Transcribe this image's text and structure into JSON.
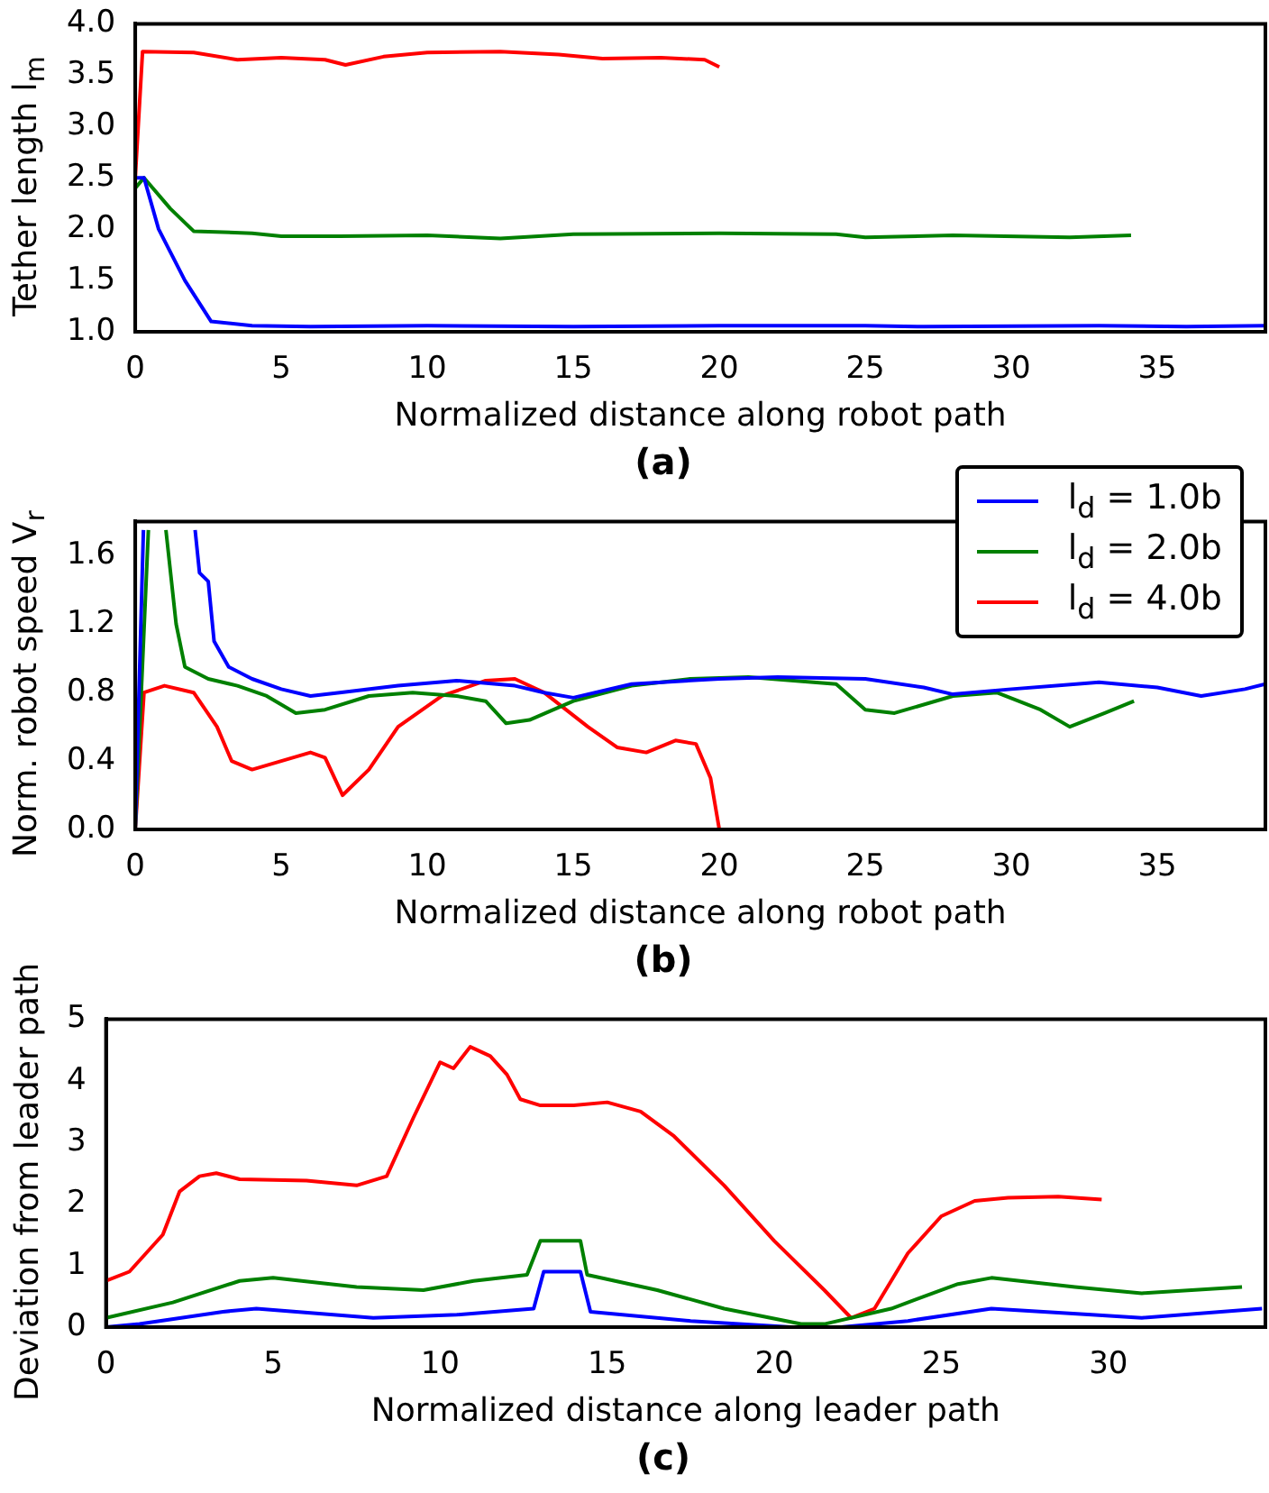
{
  "chart_data": [
    {
      "type": "line",
      "title": "(a)",
      "xlabel": "Normalized distance along robot path",
      "ylabel": "Tether length l$_{m}$",
      "xlim": [
        0,
        38.7
      ],
      "xticks": [
        0,
        5,
        10,
        15,
        20,
        25,
        30,
        35
      ],
      "ylim": [
        1,
        4
      ],
      "yticks": [
        {
          "value": 1,
          "label": "1.0"
        },
        1.5,
        {
          "value": 2,
          "label": "2.0"
        },
        2.5,
        {
          "value": 3,
          "label": "3.0"
        },
        3.5,
        {
          "value": 4,
          "label": "4.0"
        }
      ],
      "grid": false,
      "legend": false,
      "series": [
        {
          "color": "#0000ff",
          "x": [
            0,
            0.3,
            0.8,
            1.7,
            2.6,
            4,
            6,
            10,
            15,
            20,
            25,
            27,
            33,
            36,
            38.7
          ],
          "values": [
            2.5,
            2.5,
            2.0,
            1.5,
            1.1,
            1.06,
            1.05,
            1.06,
            1.05,
            1.06,
            1.06,
            1.05,
            1.06,
            1.05,
            1.06
          ]
        },
        {
          "color": "#008000",
          "x": [
            0,
            0.3,
            1.2,
            2,
            4,
            5,
            7,
            10,
            12.5,
            15,
            20,
            24,
            25,
            28,
            32,
            34.1
          ],
          "values": [
            2.4,
            2.5,
            2.2,
            1.98,
            1.96,
            1.93,
            1.93,
            1.94,
            1.91,
            1.95,
            1.96,
            1.95,
            1.92,
            1.94,
            1.92,
            1.94
          ]
        },
        {
          "color": "#ff0000",
          "x": [
            0,
            0.25,
            2,
            3.5,
            5,
            6.5,
            7.2,
            8.5,
            10,
            12.5,
            14.5,
            16,
            18,
            19.5,
            20
          ],
          "values": [
            2.5,
            3.73,
            3.72,
            3.65,
            3.67,
            3.65,
            3.6,
            3.68,
            3.72,
            3.73,
            3.7,
            3.66,
            3.67,
            3.65,
            3.58
          ]
        }
      ]
    },
    {
      "type": "line",
      "title": "(b)",
      "xlabel": "Normalized distance along robot path",
      "ylabel": "Norm. robot speed V$_{r}$",
      "xlim": [
        0,
        38.7
      ],
      "xticks": [
        0,
        5,
        10,
        15,
        20,
        25,
        30,
        35
      ],
      "ylim": [
        0,
        1.8
      ],
      "yticks": [
        {
          "value": 0,
          "label": "0.0"
        },
        0.4,
        0.8,
        1.2,
        1.6
      ],
      "grid": false,
      "legend": "top right",
      "series": [
        {
          "name": "l$_{d}$ = 1.0b",
          "color": "#0000ff",
          "x": [
            0,
            0.28,
            1,
            2.05,
            2.2,
            2.5,
            2.7,
            3.2,
            4,
            5,
            6,
            7,
            9,
            11,
            13,
            14,
            15,
            17,
            20,
            22,
            25,
            27,
            28,
            30,
            33,
            35,
            36.5,
            38,
            38.7
          ],
          "values": [
            0,
            1.75,
            null,
            1.75,
            1.5,
            1.45,
            1.1,
            0.95,
            0.88,
            0.82,
            0.78,
            0.8,
            0.84,
            0.87,
            0.84,
            0.8,
            0.77,
            0.85,
            0.88,
            0.89,
            0.88,
            0.83,
            0.79,
            0.82,
            0.86,
            0.83,
            0.78,
            0.82,
            0.85
          ]
        },
        {
          "name": "l$_{d}$ = 2.0b",
          "color": "#008000",
          "x": [
            0,
            0.45,
            0.75,
            1.05,
            1.4,
            1.7,
            2.5,
            3.5,
            4.5,
            5.5,
            6.5,
            8,
            9.5,
            11,
            12,
            12.7,
            13.5,
            15,
            17,
            19,
            21,
            24,
            25,
            26,
            28,
            29.5,
            31,
            32,
            33.2,
            34.2
          ],
          "values": [
            0,
            1.75,
            null,
            1.75,
            1.2,
            0.95,
            0.88,
            0.84,
            0.78,
            0.68,
            0.7,
            0.78,
            0.8,
            0.78,
            0.75,
            0.62,
            0.64,
            0.75,
            0.84,
            0.88,
            0.89,
            0.85,
            0.7,
            0.68,
            0.78,
            0.8,
            0.7,
            0.6,
            0.68,
            0.75
          ]
        },
        {
          "name": "l$_{d}$ = 4.0b",
          "color": "#ff0000",
          "x": [
            0,
            0.3,
            1,
            2,
            2.8,
            3.3,
            4,
            5,
            6,
            6.5,
            7.1,
            8,
            9,
            10.5,
            12,
            13,
            14,
            15.5,
            16.5,
            17.5,
            18.5,
            19.2,
            19.7,
            20
          ],
          "values": [
            0,
            0.8,
            0.84,
            0.8,
            0.6,
            0.4,
            0.35,
            0.4,
            0.45,
            0.42,
            0.2,
            0.35,
            0.6,
            0.78,
            0.87,
            0.88,
            0.8,
            0.6,
            0.48,
            0.45,
            0.52,
            0.5,
            0.3,
            0
          ]
        }
      ]
    },
    {
      "type": "line",
      "title": "(c)",
      "xlabel": "Normalized distance along leader path",
      "ylabel": "Deviation from leader path",
      "xlim": [
        0,
        34.7
      ],
      "xticks": [
        0,
        5,
        10,
        15,
        20,
        25,
        30
      ],
      "ylim": [
        0,
        5
      ],
      "yticks": [
        0,
        1,
        2,
        3,
        4,
        5
      ],
      "grid": false,
      "legend": false,
      "series": [
        {
          "color": "#0000ff",
          "x": [
            0,
            1,
            3.5,
            4.5,
            8,
            10.5,
            12.8,
            13.1,
            14.2,
            14.5,
            17.5,
            20.5,
            22,
            24,
            26.5,
            29.5,
            31,
            34.6
          ],
          "values": [
            0,
            0.05,
            0.25,
            0.3,
            0.15,
            0.2,
            0.3,
            0.9,
            0.9,
            0.25,
            0.1,
            0,
            0,
            0.1,
            0.3,
            0.2,
            0.15,
            0.3
          ]
        },
        {
          "color": "#008000",
          "x": [
            0,
            2,
            4,
            5,
            7.5,
            9.5,
            11,
            12.6,
            13,
            14.2,
            14.4,
            16.5,
            18.5,
            20.8,
            21.5,
            23.5,
            25.5,
            26.5,
            29,
            31,
            34
          ],
          "values": [
            0.15,
            0.4,
            0.75,
            0.8,
            0.65,
            0.6,
            0.75,
            0.85,
            1.4,
            1.4,
            0.85,
            0.6,
            0.3,
            0.05,
            0.05,
            0.3,
            0.7,
            0.8,
            0.65,
            0.55,
            0.65
          ]
        },
        {
          "color": "#ff0000",
          "x": [
            0,
            0.7,
            1.7,
            2.2,
            2.8,
            3.3,
            4,
            6,
            7.5,
            8.4,
            9.2,
            10,
            10.4,
            10.9,
            11.5,
            12,
            12.4,
            13,
            14,
            15,
            16,
            17,
            18.5,
            20,
            21.5,
            22.3,
            23,
            24,
            25,
            26,
            27,
            28.5,
            29.8
          ],
          "values": [
            0.75,
            0.9,
            1.5,
            2.2,
            2.45,
            2.5,
            2.4,
            2.38,
            2.3,
            2.45,
            3.4,
            4.3,
            4.2,
            4.55,
            4.4,
            4.1,
            3.7,
            3.6,
            3.6,
            3.65,
            3.5,
            3.1,
            2.3,
            1.4,
            0.6,
            0.15,
            0.3,
            1.2,
            1.8,
            2.05,
            2.1,
            2.12,
            2.07
          ]
        }
      ]
    }
  ]
}
